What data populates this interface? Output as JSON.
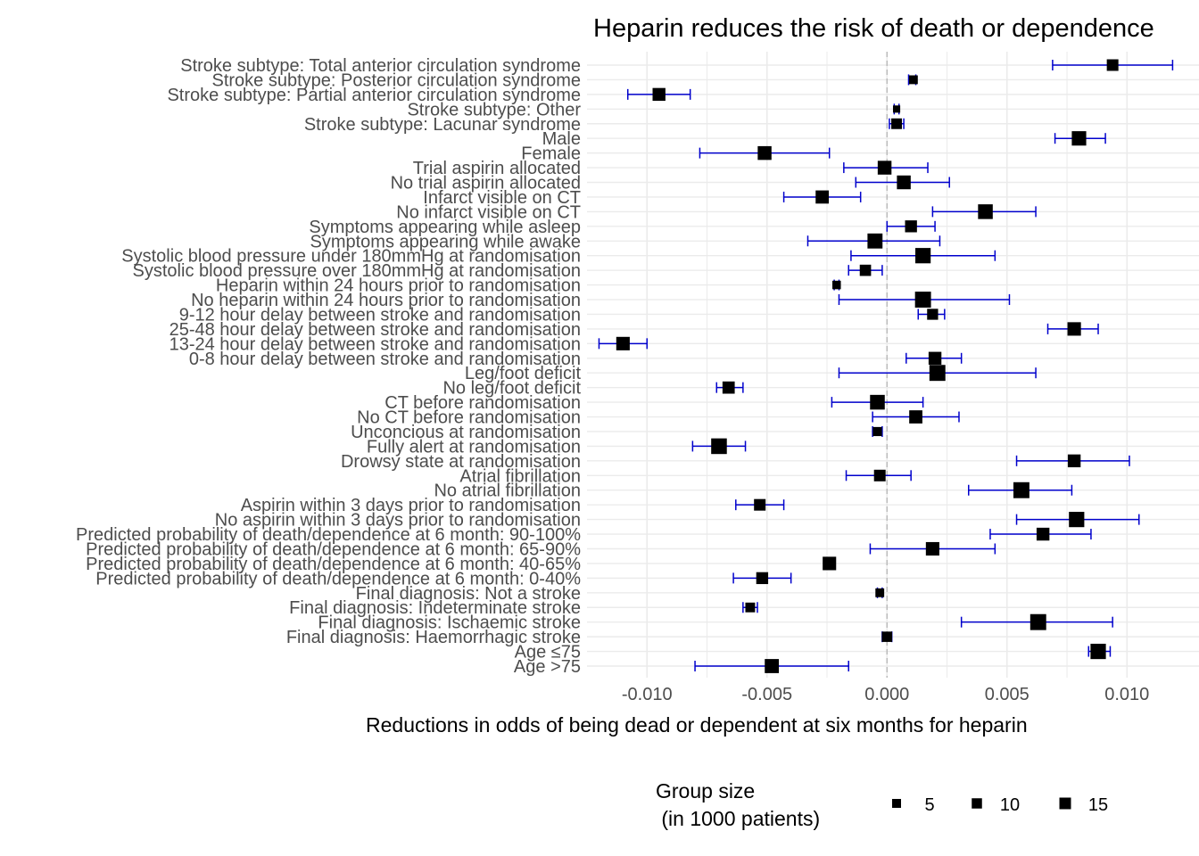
{
  "chart_data": {
    "type": "forest",
    "title": "Heparin reduces the risk of death or dependence",
    "xlabel": "Reductions in odds of being dead or dependent at six months for heparin",
    "xlim": [
      -0.0125,
      0.013
    ],
    "xticks": [
      -0.01,
      -0.005,
      0.0,
      0.005,
      0.01
    ],
    "xtick_labels": [
      "-0.010",
      "-0.005",
      "0.000",
      "0.005",
      "0.010"
    ],
    "reference_line": 0.0,
    "grid": true,
    "colors": {
      "point": "#000000",
      "errorbar": "#0000cc",
      "grid": "#ebebeb",
      "refline": "#bbbbbb"
    },
    "legend": {
      "title_line1": "Group size",
      "title_line2": " (in 1000 patients)",
      "placement": "bottom",
      "entries": [
        {
          "label": "5",
          "size": 5
        },
        {
          "label": "10",
          "size": 10
        },
        {
          "label": "15",
          "size": 15
        }
      ]
    },
    "rows": [
      {
        "label": "Stroke subtype: Total anterior circulation syndrome",
        "estimate": 0.0094,
        "lower": 0.0069,
        "upper": 0.0119,
        "size": 10.0
      },
      {
        "label": "Stroke subtype: Posterior circulation syndrome",
        "estimate": 0.0011,
        "lower": 0.0009,
        "upper": 0.0012,
        "size": 5.5
      },
      {
        "label": "Stroke subtype: Partial anterior circulation syndrome",
        "estimate": -0.0095,
        "lower": -0.0108,
        "upper": -0.0082,
        "size": 12.0
      },
      {
        "label": "Stroke subtype: Other",
        "estimate": 0.0004,
        "lower": 0.0003,
        "upper": 0.0005,
        "size": 3.0
      },
      {
        "label": "Stroke subtype: Lacunar syndrome",
        "estimate": 0.0004,
        "lower": 0.0001,
        "upper": 0.0007,
        "size": 8.5
      },
      {
        "label": "Male",
        "estimate": 0.008,
        "lower": 0.007,
        "upper": 0.0091,
        "size": 14.5
      },
      {
        "label": "Female",
        "estimate": -0.0051,
        "lower": -0.0078,
        "upper": -0.0024,
        "size": 13.5
      },
      {
        "label": "Trial aspirin allocated",
        "estimate": -0.0001,
        "lower": -0.0018,
        "upper": 0.0017,
        "size": 13.5
      },
      {
        "label": "No trial aspirin allocated",
        "estimate": 0.0007,
        "lower": -0.0013,
        "upper": 0.0026,
        "size": 13.5
      },
      {
        "label": "Infarct visible on CT",
        "estimate": -0.0027,
        "lower": -0.0043,
        "upper": -0.0011,
        "size": 12.5
      },
      {
        "label": "No infarct visible on CT",
        "estimate": 0.0041,
        "lower": 0.0019,
        "upper": 0.0062,
        "size": 15.0
      },
      {
        "label": "Symptoms appearing while asleep",
        "estimate": 0.001,
        "lower": 0.0,
        "upper": 0.002,
        "size": 10.5
      },
      {
        "label": "Symptoms appearing while awake",
        "estimate": -0.0005,
        "lower": -0.0033,
        "upper": 0.0022,
        "size": 15.5
      },
      {
        "label": "Systolic blood pressure under 180mmHg at randomisation",
        "estimate": 0.0015,
        "lower": -0.0015,
        "upper": 0.0045,
        "size": 16.0
      },
      {
        "label": "Systolic blood pressure over 180mmHg at randomisation",
        "estimate": -0.0009,
        "lower": -0.0016,
        "upper": -0.0002,
        "size": 9.5
      },
      {
        "label": "Heparin within 24 hours prior to randomisation",
        "estimate": -0.0021,
        "lower": -0.0022,
        "upper": -0.002,
        "size": 5.0
      },
      {
        "label": "No heparin within 24 hours prior to randomisation",
        "estimate": 0.0015,
        "lower": -0.002,
        "upper": 0.0051,
        "size": 17.0
      },
      {
        "label": "9-12 hour delay between stroke and randomisation",
        "estimate": 0.0019,
        "lower": 0.0013,
        "upper": 0.0024,
        "size": 9.0
      },
      {
        "label": "25-48 hour delay between stroke and randomisation",
        "estimate": 0.0078,
        "lower": 0.0067,
        "upper": 0.0088,
        "size": 13.0
      },
      {
        "label": "13-24 hour delay between stroke and randomisation",
        "estimate": -0.011,
        "lower": -0.012,
        "upper": -0.01,
        "size": 13.0
      },
      {
        "label": "0-8 hour delay between stroke and randomisation",
        "estimate": 0.002,
        "lower": 0.0008,
        "upper": 0.0031,
        "size": 12.0
      },
      {
        "label": "Leg/foot deficit",
        "estimate": 0.0021,
        "lower": -0.002,
        "upper": 0.0062,
        "size": 17.0
      },
      {
        "label": "No leg/foot deficit",
        "estimate": -0.0066,
        "lower": -0.0071,
        "upper": -0.006,
        "size": 11.0
      },
      {
        "label": "CT before randomisation",
        "estimate": -0.0004,
        "lower": -0.0023,
        "upper": 0.0015,
        "size": 15.0
      },
      {
        "label": "No CT before randomisation",
        "estimate": 0.0012,
        "lower": -0.0006,
        "upper": 0.003,
        "size": 12.5
      },
      {
        "label": "Unconcious at randomisation",
        "estimate": -0.0004,
        "lower": -0.0006,
        "upper": -0.0002,
        "size": 6.0
      },
      {
        "label": "Fully alert at randomisation",
        "estimate": -0.007,
        "lower": -0.0081,
        "upper": -0.0059,
        "size": 16.5
      },
      {
        "label": "Drowsy state at randomisation",
        "estimate": 0.0078,
        "lower": 0.0054,
        "upper": 0.0101,
        "size": 12.0
      },
      {
        "label": "Atrial fibrillation",
        "estimate": -0.0003,
        "lower": -0.0017,
        "upper": 0.001,
        "size": 10.0
      },
      {
        "label": "No atrial fibrillation",
        "estimate": 0.0056,
        "lower": 0.0034,
        "upper": 0.0077,
        "size": 17.0
      },
      {
        "label": "Aspirin within 3 days prior to randomisation",
        "estimate": -0.0053,
        "lower": -0.0063,
        "upper": -0.0043,
        "size": 10.0
      },
      {
        "label": "No aspirin within 3 days prior to randomisation",
        "estimate": 0.0079,
        "lower": 0.0054,
        "upper": 0.0105,
        "size": 16.0
      },
      {
        "label": "Predicted probability of death/dependence at 6 month: 90-100%",
        "estimate": 0.0065,
        "lower": 0.0043,
        "upper": 0.0085,
        "size": 12.0
      },
      {
        "label": "Predicted probability of death/dependence at 6 month: 65-90%",
        "estimate": 0.0019,
        "lower": -0.0007,
        "upper": 0.0045,
        "size": 13.0
      },
      {
        "label": "Predicted probability of death/dependence at 6 month: 40-65%",
        "estimate": -0.0024,
        "lower": -0.0025,
        "upper": -0.0023,
        "size": 13.0
      },
      {
        "label": "Predicted probability of death/dependence at 6 month: 0-40%",
        "estimate": -0.0052,
        "lower": -0.0064,
        "upper": -0.004,
        "size": 10.5
      },
      {
        "label": "Final diagnosis: Not a stroke",
        "estimate": -0.0003,
        "lower": -0.0004,
        "upper": -0.0002,
        "size": 5.5
      },
      {
        "label": "Final diagnosis: Indeterminate stroke",
        "estimate": -0.0057,
        "lower": -0.006,
        "upper": -0.0054,
        "size": 7.0
      },
      {
        "label": "Final diagnosis: Ischaemic stroke",
        "estimate": 0.0063,
        "lower": 0.0031,
        "upper": 0.0094,
        "size": 17.0
      },
      {
        "label": "Final diagnosis: Haemorrhagic stroke",
        "estimate": 0.0,
        "lower": -0.0002,
        "upper": 0.0002,
        "size": 8.0
      },
      {
        "label": "Age ≤75",
        "estimate": 0.0088,
        "lower": 0.0084,
        "upper": 0.0093,
        "size": 16.0
      },
      {
        "label": "Age >75",
        "estimate": -0.0048,
        "lower": -0.008,
        "upper": -0.0016,
        "size": 14.0
      }
    ]
  }
}
